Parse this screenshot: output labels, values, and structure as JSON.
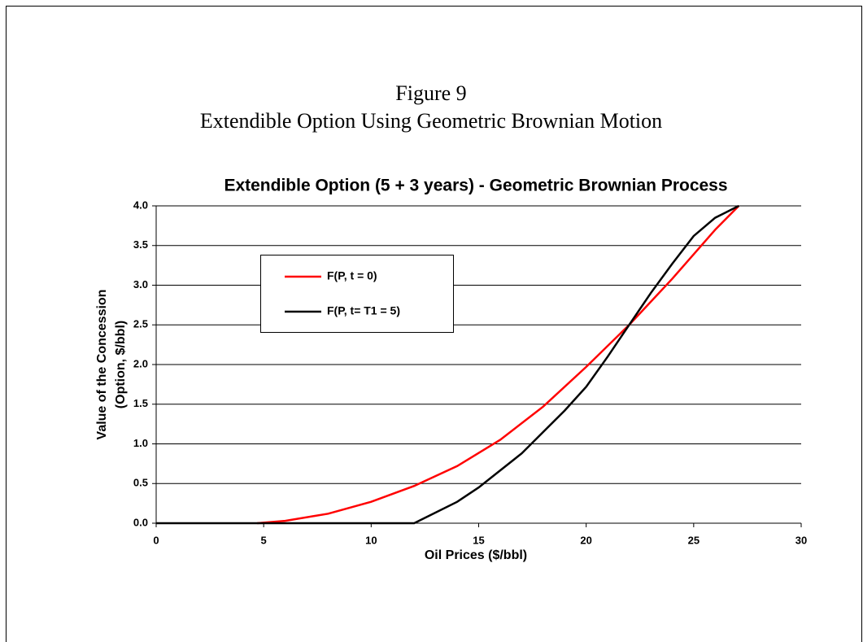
{
  "header": {
    "figure": "Figure 9",
    "caption": "Extendible Option Using Geometric Brownian Motion"
  },
  "chart_data": {
    "type": "line",
    "title": "Extendible Option (5 + 3 years) - Geometric Brownian Process",
    "xlabel": "Oil Prices ($/bbl)",
    "ylabel": [
      "Value of the Concession",
      "(Option, $/bbl)"
    ],
    "xlim": [
      0,
      30
    ],
    "xticks": [
      0,
      5,
      10,
      15,
      20,
      25,
      30
    ],
    "ylim": [
      0,
      4
    ],
    "yticks": [
      {
        "value": 0,
        "label": "0.0"
      },
      {
        "value": 0.5,
        "label": "0.5"
      },
      {
        "value": 1,
        "label": "1.0"
      },
      {
        "value": 1.5,
        "label": "1.5"
      },
      {
        "value": 2,
        "label": "2.0"
      },
      {
        "value": 2.5,
        "label": "2.5"
      },
      {
        "value": 3,
        "label": "3.0"
      },
      {
        "value": 3.5,
        "label": "3.5"
      },
      {
        "value": 4,
        "label": "4.0"
      }
    ],
    "grid": true,
    "series": [
      {
        "name": "F(P, t = 0)",
        "color": "#ff0000",
        "x": [
          4.7,
          6,
          8,
          10,
          12,
          14,
          16,
          18,
          20,
          22,
          24,
          26,
          27.1
        ],
        "values": [
          0,
          0.03,
          0.12,
          0.27,
          0.47,
          0.72,
          1.05,
          1.47,
          1.97,
          2.5,
          3.08,
          3.7,
          4.0
        ]
      },
      {
        "name": "F(P, t= T1 = 5)",
        "color": "#000000",
        "x": [
          0,
          12,
          14,
          15,
          17,
          19,
          20,
          21,
          22,
          23,
          24,
          25,
          26,
          27.1
        ],
        "values": [
          0,
          0,
          0.27,
          0.45,
          0.88,
          1.42,
          1.72,
          2.1,
          2.5,
          2.9,
          3.27,
          3.62,
          3.85,
          4.0
        ]
      }
    ]
  }
}
